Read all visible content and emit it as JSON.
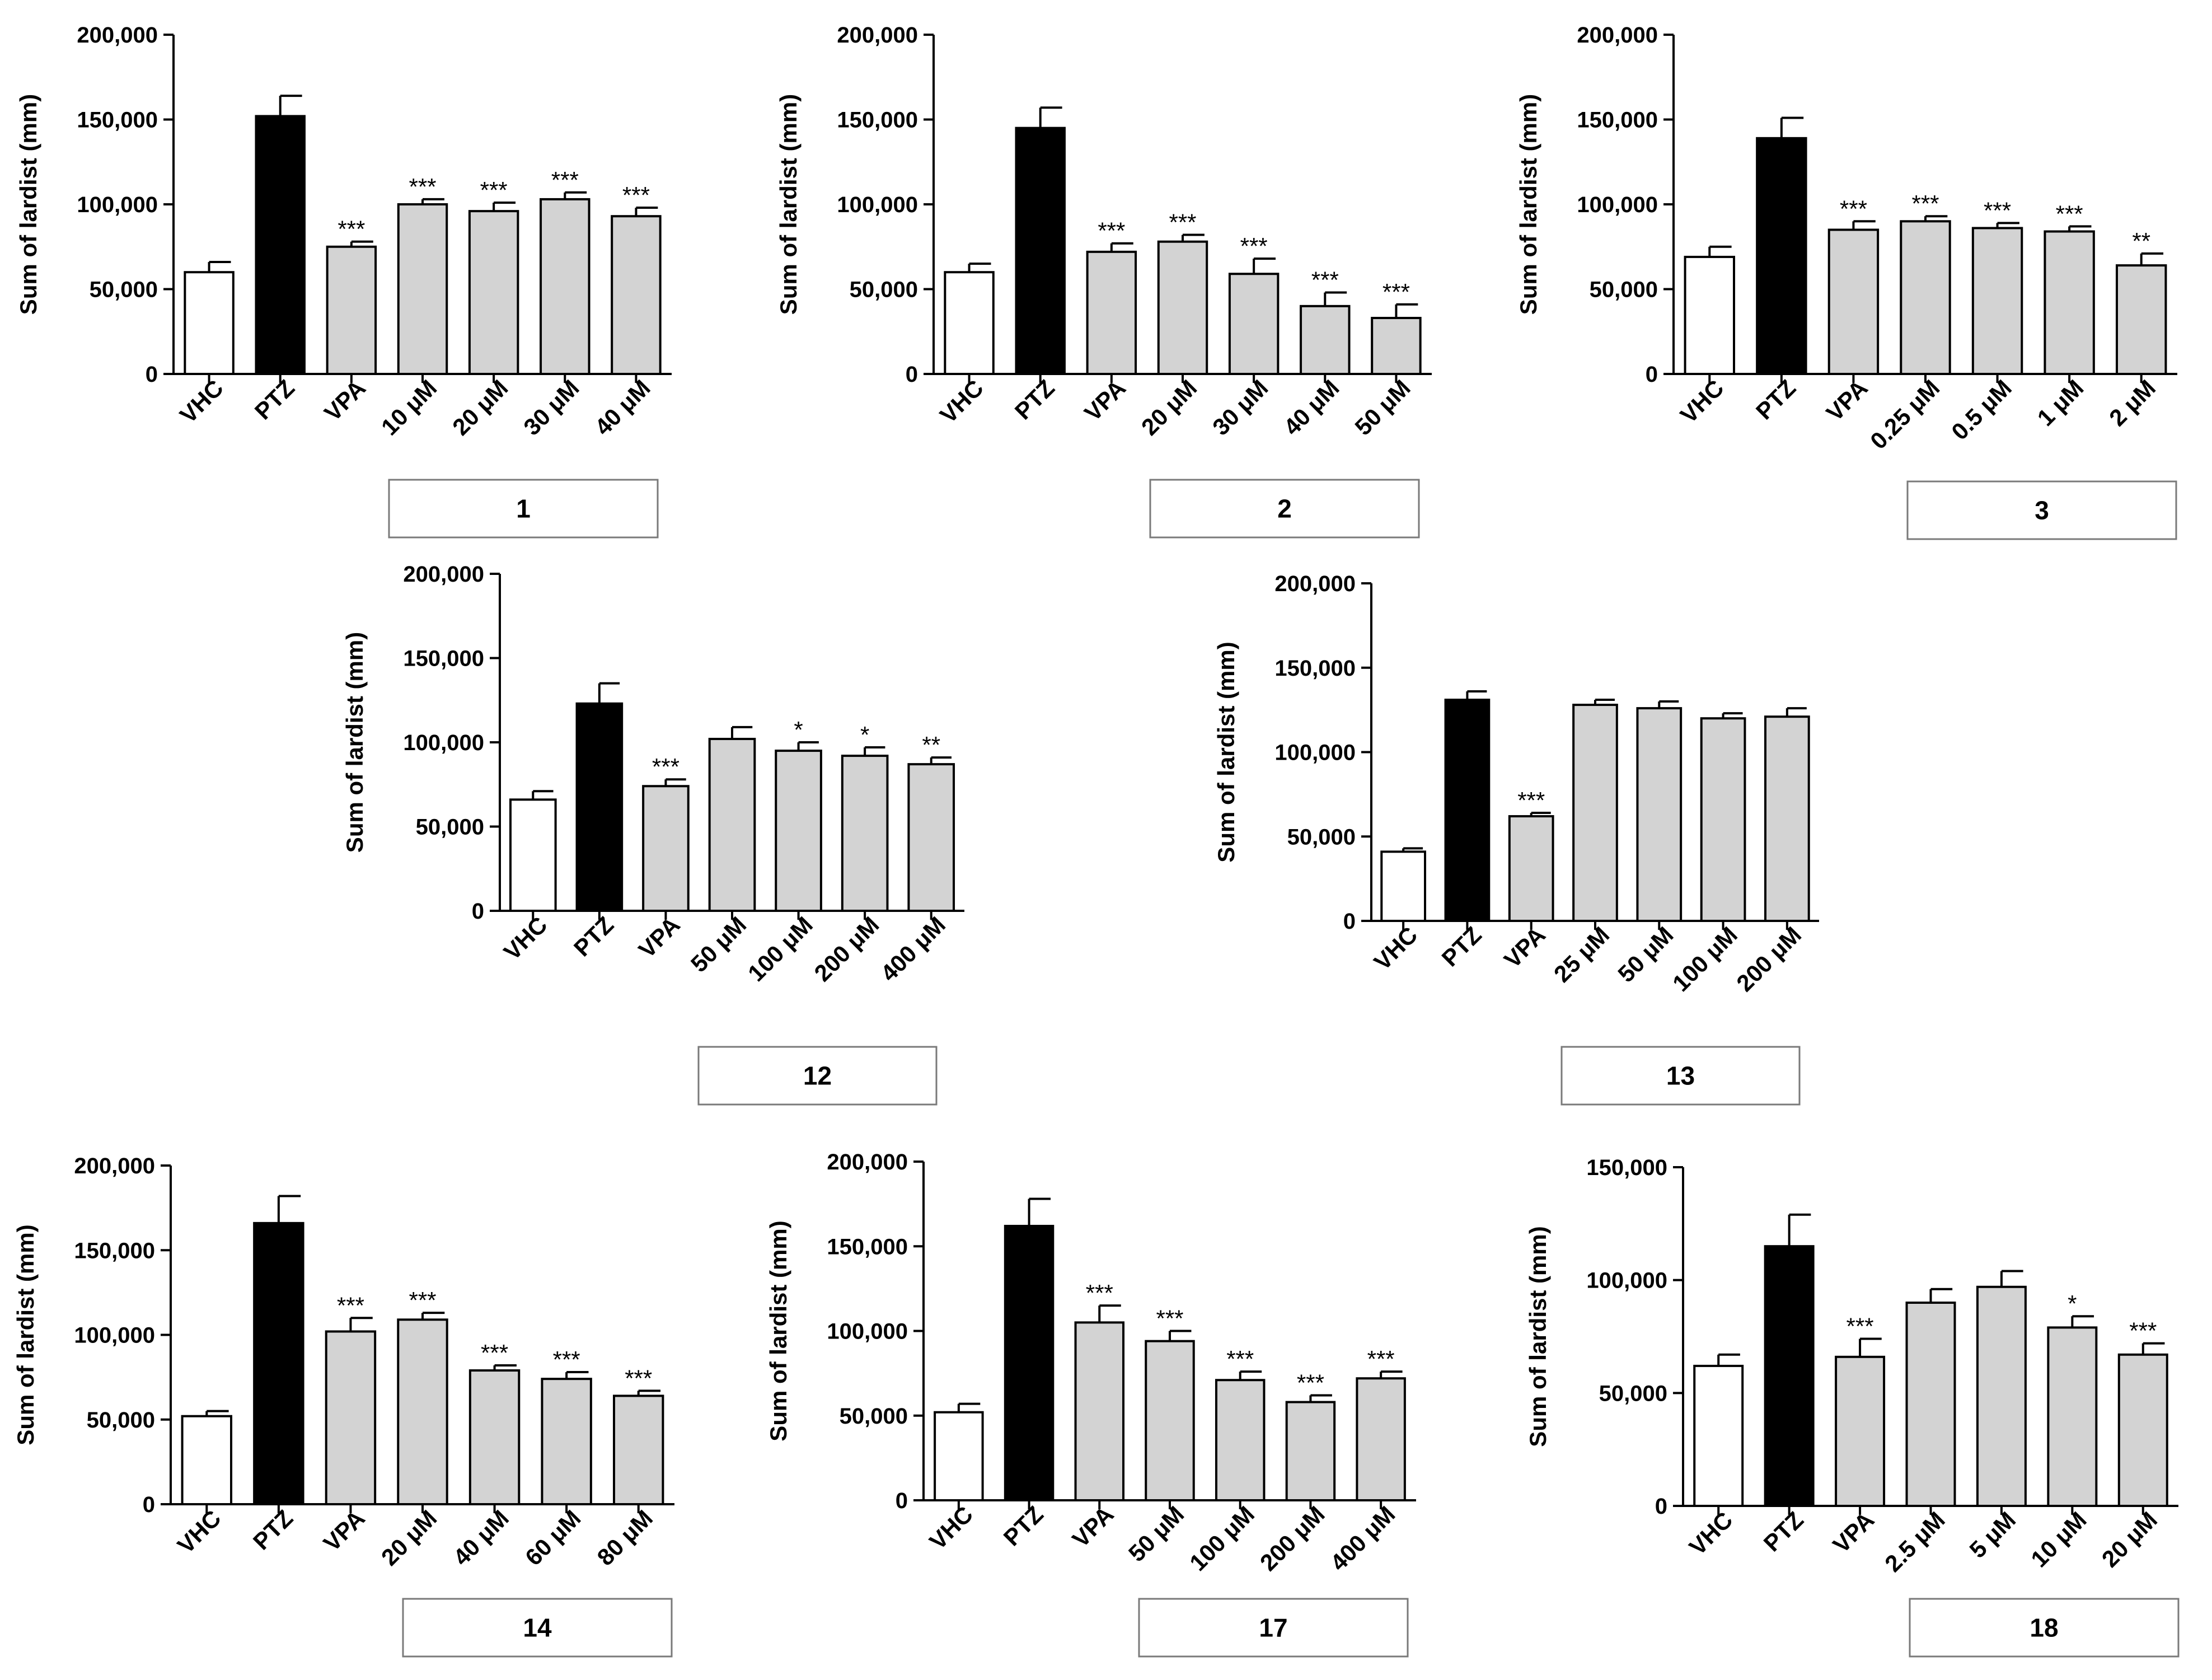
{
  "colors": {
    "vhc": "#ffffff",
    "ptz": "#000000",
    "compound": "#d3d3d3",
    "stroke": "#000000"
  },
  "chart_data": [
    {
      "type": "bar",
      "compound_label": "1",
      "ylabel": "Sum of lardist (mm)",
      "ylim": [
        0,
        200000
      ],
      "yticks": [
        "0",
        "50,000",
        "100,000",
        "150,000",
        "200,000"
      ],
      "categories": [
        "VHC",
        "PTZ",
        "VPA",
        "10 μM",
        "20 μM",
        "30 μM",
        "40 μM"
      ],
      "values": [
        60000,
        152000,
        75000,
        100000,
        96000,
        103000,
        93000
      ],
      "errors": [
        6000,
        12000,
        3000,
        3000,
        5000,
        4000,
        5000
      ],
      "significance": [
        "",
        "",
        "***",
        "***",
        "***",
        "***",
        "***"
      ]
    },
    {
      "type": "bar",
      "compound_label": "2",
      "ylabel": "Sum of lardist (mm)",
      "ylim": [
        0,
        200000
      ],
      "yticks": [
        "0",
        "50,000",
        "100,000",
        "150,000",
        "200,000"
      ],
      "categories": [
        "VHC",
        "PTZ",
        "VPA",
        "20 μM",
        "30 μM",
        "40 μM",
        "50 μM"
      ],
      "values": [
        60000,
        145000,
        72000,
        78000,
        59000,
        40000,
        33000
      ],
      "errors": [
        5000,
        12000,
        5000,
        4000,
        9000,
        8000,
        8000
      ],
      "significance": [
        "",
        "",
        "***",
        "***",
        "***",
        "***",
        "***"
      ]
    },
    {
      "type": "bar",
      "compound_label": "3",
      "ylabel": "Sum of lardist (mm)",
      "ylim": [
        0,
        200000
      ],
      "yticks": [
        "0",
        "50,000",
        "100,000",
        "150,000",
        "200,000"
      ],
      "categories": [
        "VHC",
        "PTZ",
        "VPA",
        "0.25 μM",
        "0.5 μM",
        "1 μM",
        "2 μM"
      ],
      "values": [
        69000,
        139000,
        85000,
        90000,
        86000,
        84000,
        64000
      ],
      "errors": [
        6000,
        12000,
        5000,
        3000,
        3000,
        3000,
        7000
      ],
      "significance": [
        "",
        "",
        "***",
        "***",
        "***",
        "***",
        "**"
      ]
    },
    {
      "type": "bar",
      "compound_label": "12",
      "ylabel": "Sum of lardist (mm)",
      "ylim": [
        0,
        200000
      ],
      "yticks": [
        "0",
        "50,000",
        "100,000",
        "150,000",
        "200,000"
      ],
      "categories": [
        "VHC",
        "PTZ",
        "VPA",
        "50 μM",
        "100 μM",
        "200 μM",
        "400 μM"
      ],
      "values": [
        66000,
        123000,
        74000,
        102000,
        95000,
        92000,
        87000
      ],
      "errors": [
        5000,
        12000,
        4000,
        7000,
        5000,
        5000,
        4000
      ],
      "significance": [
        "",
        "",
        "***",
        "",
        "*",
        "*",
        "**"
      ]
    },
    {
      "type": "bar",
      "compound_label": "13",
      "ylabel": "Sum of lardist (mm)",
      "ylim": [
        0,
        200000
      ],
      "yticks": [
        "0",
        "50,000",
        "100,000",
        "150,000",
        "200,000"
      ],
      "categories": [
        "VHC",
        "PTZ",
        "VPA",
        "25 μM",
        "50 μM",
        "100 μM",
        "200 μM"
      ],
      "values": [
        41000,
        131000,
        62000,
        128000,
        126000,
        120000,
        121000
      ],
      "errors": [
        2000,
        5000,
        2000,
        3000,
        4000,
        3000,
        5000
      ],
      "significance": [
        "",
        "",
        "***",
        "",
        "",
        "",
        ""
      ]
    },
    {
      "type": "bar",
      "compound_label": "14",
      "ylabel": "Sum of lardist (mm)",
      "ylim": [
        0,
        200000
      ],
      "yticks": [
        "0",
        "50,000",
        "100,000",
        "150,000",
        "200,000"
      ],
      "categories": [
        "VHC",
        "PTZ",
        "VPA",
        "20 μM",
        "40 μM",
        "60 μM",
        "80 μM"
      ],
      "values": [
        52000,
        166000,
        102000,
        109000,
        79000,
        74000,
        64000
      ],
      "errors": [
        3000,
        16000,
        8000,
        4000,
        3000,
        4000,
        3000
      ],
      "significance": [
        "",
        "",
        "***",
        "***",
        "***",
        "***",
        "***"
      ]
    },
    {
      "type": "bar",
      "compound_label": "17",
      "ylabel": "Sum of lardist (mm)",
      "ylim": [
        0,
        200000
      ],
      "yticks": [
        "0",
        "50,000",
        "100,000",
        "150,000",
        "200,000"
      ],
      "categories": [
        "VHC",
        "PTZ",
        "VPA",
        "50 μM",
        "100 μM",
        "200 μM",
        "400 μM"
      ],
      "values": [
        52000,
        162000,
        105000,
        94000,
        71000,
        58000,
        72000
      ],
      "errors": [
        5000,
        16000,
        10000,
        6000,
        5000,
        4000,
        4000
      ],
      "significance": [
        "",
        "",
        "***",
        "***",
        "***",
        "***",
        "***"
      ]
    },
    {
      "type": "bar",
      "compound_label": "18",
      "ylabel": "Sum of lardist (mm)",
      "ylim": [
        0,
        150000
      ],
      "yticks": [
        "0",
        "50,000",
        "100,000",
        "150,000"
      ],
      "categories": [
        "VHC",
        "PTZ",
        "VPA",
        "2.5 μM",
        "5 μM",
        "10 μM",
        "20 μM"
      ],
      "values": [
        62000,
        115000,
        66000,
        90000,
        97000,
        79000,
        67000
      ],
      "errors": [
        5000,
        14000,
        8000,
        6000,
        7000,
        5000,
        5000
      ],
      "significance": [
        "",
        "",
        "***",
        "",
        "",
        "*",
        "***"
      ]
    }
  ]
}
